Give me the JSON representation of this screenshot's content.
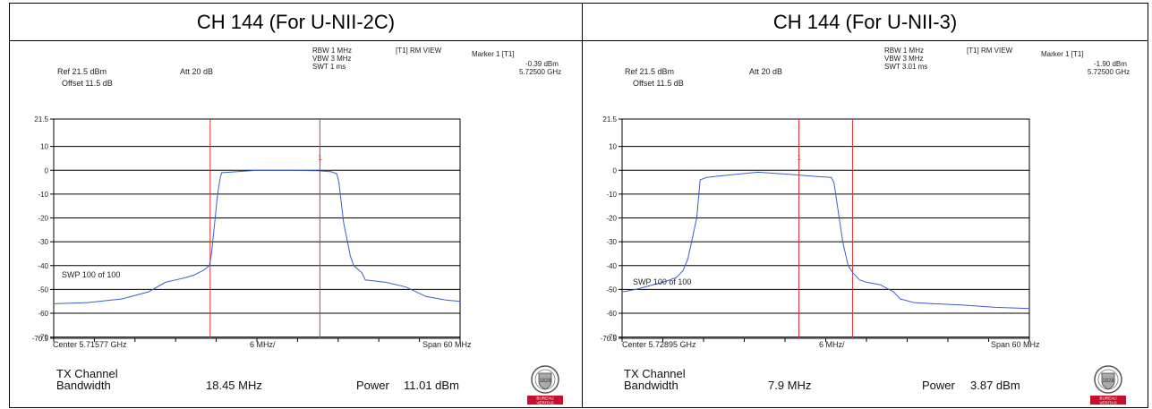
{
  "panels": [
    {
      "heading": "CH 144 (For U-NII-2C)",
      "settings": {
        "rbw": "RBW 1 MHz",
        "vbw": "VBW 3 MHz",
        "swt": "SWT 1 ms",
        "trace": "[T1] RM VIEW"
      },
      "marker": {
        "label": "Marker 1 [T1]",
        "level": "-0.39 dBm",
        "freq": "5.72500 GHz"
      },
      "ref": "Ref 21.5 dBm",
      "att": "Att  20 dB",
      "offset": "Offset 11.5 dB",
      "sweep": "SWP 100 of 100",
      "center": "Center 5.71577 GHz",
      "div": "6 MHz/",
      "span": "Span 60 MHz",
      "result": {
        "label1": "TX Channel",
        "label2": "Bandwidth",
        "bandwidth": "18.45 MHz",
        "power_label": "Power",
        "power": "11.01 dBm"
      }
    },
    {
      "heading": "CH 144 (For U-NII-3)",
      "settings": {
        "rbw": "RBW 1 MHz",
        "vbw": "VBW 3 MHz",
        "swt": "SWT 3.01 ms",
        "trace": "[T1] RM VIEW"
      },
      "marker": {
        "label": "Marker 1 [T1]",
        "level": "-1.90 dBm",
        "freq": "5.72500 GHz"
      },
      "ref": "Ref 21.5 dBm",
      "att": "Att  20 dB",
      "offset": "Offset 11.5 dB",
      "sweep": "SWP 100 of 100",
      "center": "Center 5.72895 GHz",
      "div": "6 MHz/",
      "span": "Span 60 MHz",
      "result": {
        "label1": "TX Channel",
        "label2": "Bandwidth",
        "bandwidth": "7.9 MHz",
        "power_label": "Power",
        "power": "3.87 dBm"
      }
    }
  ],
  "logo": {
    "lines": [
      "BUREAU",
      "VERITAS"
    ],
    "year": "1828",
    "text": "BUREAU VERITAS"
  },
  "colors": {
    "trace": "#3a5fcd",
    "line": "#e03030",
    "grid": "#000000"
  },
  "chart_data": [
    {
      "type": "line",
      "title": "CH 144 (For U-NII-2C)",
      "y_ticks": [
        "21.5",
        "10",
        "0",
        "-10",
        "-20",
        "-30",
        "-40",
        "-50",
        "-60",
        "-70",
        "-70.5"
      ],
      "ylim": [
        -70.5,
        21.5
      ],
      "xlim": [
        -30,
        30
      ],
      "x_unit": "MHz offset from center",
      "vlines": [
        -6.9,
        9.3
      ],
      "marker_x": 9.3,
      "x": [
        -30,
        -25,
        -20,
        -16,
        -13.5,
        -12,
        -10.5,
        -9.3,
        -7.9,
        -7,
        -6.7,
        -5.8,
        -5.4,
        -5.2,
        -4,
        0,
        5,
        9,
        11,
        11.8,
        12.1,
        12.8,
        13.8,
        14.3,
        15.5,
        16,
        19,
        22,
        25,
        28,
        30
      ],
      "values": [
        -56,
        -55.5,
        -54,
        -51,
        -47,
        -46,
        -45,
        -44,
        -42,
        -40,
        -35,
        -10,
        -3,
        -1,
        -0.8,
        0,
        0,
        -0.2,
        -0.6,
        -1.5,
        -5,
        -22,
        -36,
        -40,
        -43,
        -46,
        -47,
        -49,
        -53,
        -54.5,
        -55
      ]
    },
    {
      "type": "line",
      "title": "CH 144 (For U-NII-3)",
      "y_ticks": [
        "21.5",
        "10",
        "0",
        "-10",
        "-20",
        "-30",
        "-40",
        "-50",
        "-60",
        "-70",
        "-70.5"
      ],
      "ylim": [
        -70.5,
        21.5
      ],
      "xlim": [
        -30,
        30
      ],
      "x_unit": "MHz offset from center",
      "vlines": [
        -3.95,
        3.95
      ],
      "marker_x": -3.95,
      "x": [
        -30,
        -28,
        -24,
        -22,
        -21,
        -20.3,
        -19,
        -18.5,
        -17.5,
        -16,
        -10,
        -5,
        -1,
        0.8,
        1.2,
        2.5,
        3.3,
        4,
        5,
        6,
        8,
        10,
        11,
        13,
        16,
        20,
        25,
        30
      ],
      "values": [
        -51,
        -50,
        -47,
        -45,
        -42,
        -37,
        -20,
        -4,
        -3,
        -2.5,
        -0.8,
        -1.8,
        -2.7,
        -3,
        -5,
        -30,
        -40,
        -43,
        -46,
        -47,
        -48,
        -51,
        -54,
        -55.5,
        -56,
        -56.5,
        -57.5,
        -58
      ]
    }
  ]
}
